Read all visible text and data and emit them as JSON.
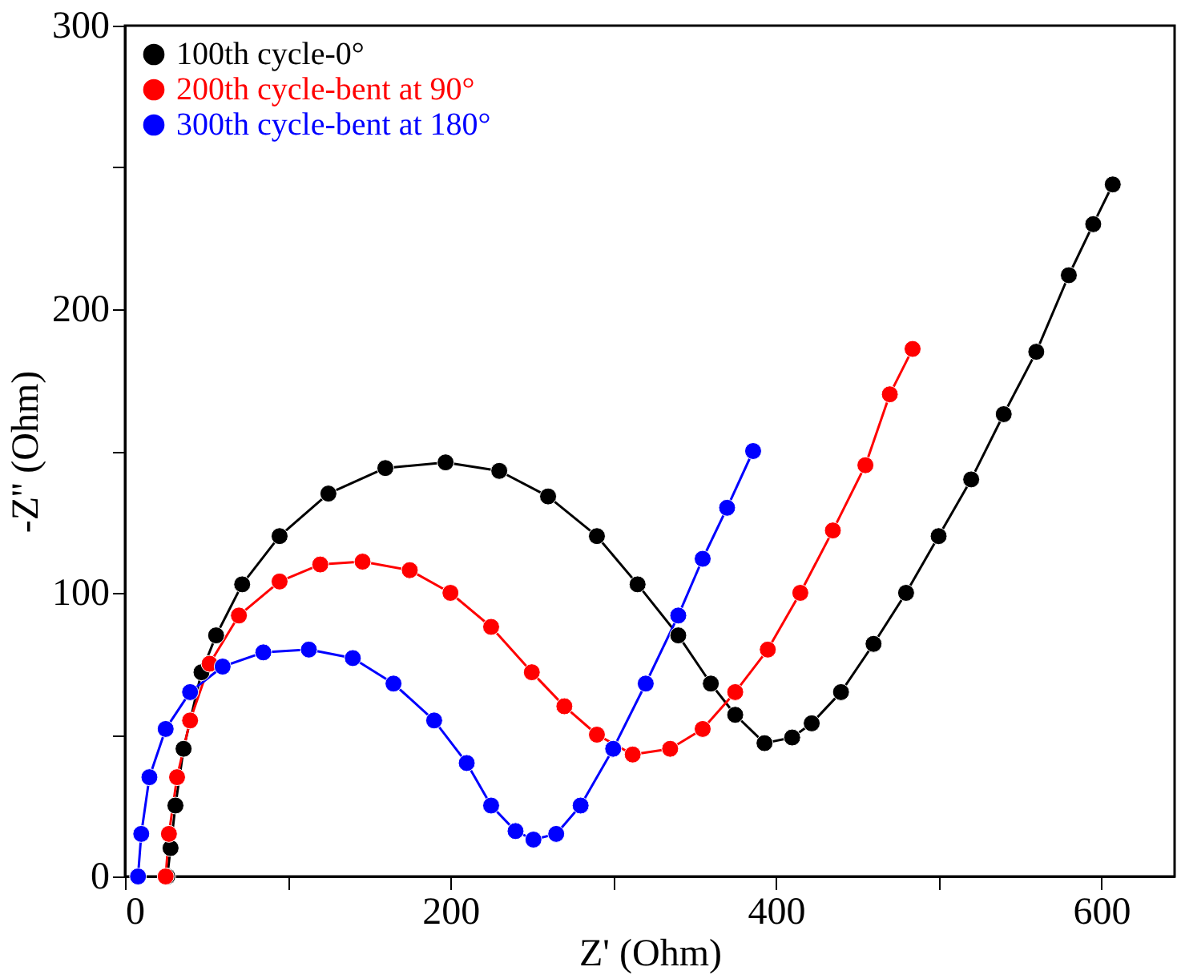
{
  "chart_data": {
    "type": "line",
    "xlabel": "Z' (Ohm)",
    "ylabel": "-Z'' (Ohm)",
    "xlim": [
      0,
      645
    ],
    "ylim": [
      0,
      300
    ],
    "xticks": [
      0,
      {
        "value": 100,
        "label": null
      },
      200,
      {
        "value": 300,
        "label": null
      },
      400,
      {
        "value": 500,
        "label": null
      },
      600
    ],
    "yticks": [
      0,
      {
        "value": 50,
        "label": null
      },
      100,
      {
        "value": 150,
        "label": null
      },
      200,
      {
        "value": 250,
        "label": null
      },
      300
    ],
    "grid": false,
    "legend": "top left",
    "marker": "circle",
    "line_style": "solid",
    "series": [
      {
        "name": "100th cycle-0°",
        "color": "#000000",
        "x": [
          26,
          28,
          31,
          36,
          47,
          56,
          72,
          95,
          125,
          160,
          197,
          230,
          260,
          290,
          315,
          340,
          360,
          375,
          393,
          410,
          422,
          440,
          460,
          480,
          500,
          520,
          540,
          560,
          580,
          595,
          607
        ],
        "values": [
          0,
          10,
          25,
          45,
          72,
          85,
          103,
          120,
          135,
          144,
          146,
          143,
          134,
          120,
          103,
          85,
          68,
          57,
          47,
          49,
          54,
          65,
          82,
          100,
          120,
          140,
          163,
          185,
          212,
          230,
          244
        ]
      },
      {
        "name": "200th cycle-bent at 90°",
        "color": "#ff0000",
        "x": [
          25,
          27,
          32,
          40,
          52,
          70,
          95,
          120,
          146,
          175,
          200,
          225,
          250,
          270,
          290,
          312,
          335,
          355,
          375,
          395,
          415,
          435,
          455,
          470,
          484
        ],
        "values": [
          0,
          15,
          35,
          55,
          75,
          92,
          104,
          110,
          111,
          108,
          100,
          88,
          72,
          60,
          50,
          43,
          45,
          52,
          65,
          80,
          100,
          122,
          145,
          170,
          186
        ]
      },
      {
        "name": "300th cycle-bent at 180°",
        "color": "#0000ff",
        "x": [
          8,
          10,
          15,
          25,
          40,
          60,
          85,
          113,
          140,
          165,
          190,
          210,
          225,
          240,
          251,
          265,
          280,
          300,
          320,
          340,
          355,
          370,
          386
        ],
        "values": [
          0,
          15,
          35,
          52,
          65,
          74,
          79,
          80,
          77,
          68,
          55,
          40,
          25,
          16,
          13,
          15,
          25,
          45,
          68,
          92,
          112,
          130,
          150
        ]
      }
    ]
  }
}
